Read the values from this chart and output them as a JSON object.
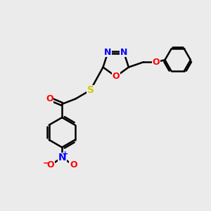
{
  "bg_color": "#ebebeb",
  "bond_color": "#000000",
  "bond_width": 1.8,
  "atom_colors": {
    "N": "#0000ff",
    "O": "#ff0000",
    "S": "#cccc00",
    "C": "#000000"
  },
  "font_size": 9
}
